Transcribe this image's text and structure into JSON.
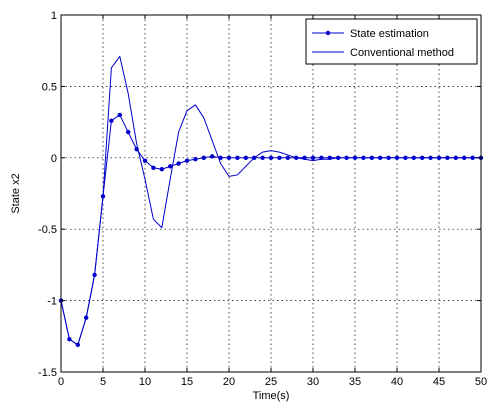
{
  "chart_data": {
    "type": "line",
    "xlabel": "Time(s)",
    "ylabel": "State x2",
    "xlim": [
      0,
      50
    ],
    "ylim": [
      -1.5,
      1
    ],
    "xticks": [
      0,
      5,
      10,
      15,
      20,
      25,
      30,
      35,
      40,
      45,
      50
    ],
    "yticks": [
      -1.5,
      -1,
      -0.5,
      0,
      0.5,
      1
    ],
    "xtick_labels": [
      "0",
      "5",
      "10",
      "15",
      "20",
      "25",
      "30",
      "35",
      "40",
      "45",
      "50"
    ],
    "ytick_labels": [
      "-1.5",
      "-1",
      "-0.5",
      "0",
      "0.5",
      "1"
    ],
    "grid": true,
    "legend_position": "top-right",
    "series": [
      {
        "name": "State estimation",
        "color": "#0000cc",
        "marker": "dot",
        "x": [
          0,
          1,
          2,
          3,
          4,
          5,
          6,
          7,
          8,
          9,
          10,
          11,
          12,
          13,
          14,
          15,
          16,
          17,
          18,
          19,
          20,
          21,
          22,
          23,
          24,
          25,
          26,
          27,
          28,
          29,
          30,
          31,
          32,
          33,
          34,
          35,
          36,
          37,
          38,
          39,
          40,
          41,
          42,
          43,
          44,
          45,
          46,
          47,
          48,
          49,
          50
        ],
        "y": [
          -1.0,
          -1.27,
          -1.31,
          -1.12,
          -0.82,
          -0.27,
          0.26,
          0.3,
          0.18,
          0.06,
          -0.02,
          -0.07,
          -0.08,
          -0.06,
          -0.04,
          -0.02,
          -0.01,
          0,
          0.01,
          0,
          0,
          0,
          0,
          0,
          0,
          0,
          0,
          0,
          0,
          0,
          0,
          0,
          0,
          0,
          0,
          0,
          0,
          0,
          0,
          0,
          0,
          0,
          0,
          0,
          0,
          0,
          0,
          0,
          0,
          0,
          0
        ]
      },
      {
        "name": "Conventional method",
        "color": "#0000cc",
        "marker": "none",
        "x": [
          0,
          1,
          2,
          3,
          4,
          5,
          6,
          7,
          8,
          9,
          10,
          11,
          12,
          13,
          14,
          15,
          16,
          17,
          18,
          19,
          20,
          21,
          22,
          23,
          24,
          25,
          26,
          27,
          28,
          29,
          30,
          31,
          32,
          33,
          34,
          35,
          36,
          37,
          38,
          39,
          40,
          41,
          42,
          43,
          44,
          45,
          46,
          47,
          48,
          49,
          50
        ],
        "y": [
          -1.0,
          -1.27,
          -1.31,
          -1.12,
          -0.82,
          -0.27,
          0.63,
          0.71,
          0.45,
          0.1,
          -0.15,
          -0.43,
          -0.49,
          -0.15,
          0.18,
          0.33,
          0.37,
          0.28,
          0.12,
          -0.04,
          -0.13,
          -0.12,
          -0.06,
          0,
          0.04,
          0.05,
          0.04,
          0.02,
          0,
          -0.01,
          -0.02,
          -0.01,
          -0.01,
          0,
          0,
          0,
          0,
          0,
          0,
          0,
          0,
          0,
          0,
          0,
          0,
          0,
          0,
          0,
          0,
          0,
          0
        ]
      }
    ]
  }
}
